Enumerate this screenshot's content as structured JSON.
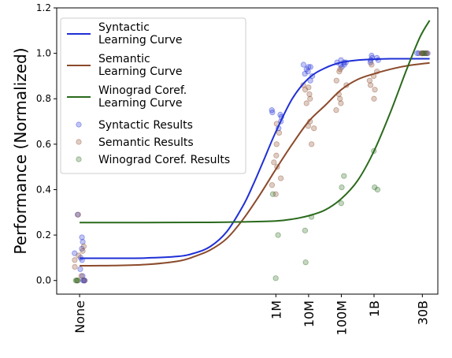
{
  "chart_data": {
    "type": "scatter",
    "title": "",
    "xlabel": "",
    "ylabel": "Performance (Normalized)",
    "ylim": [
      -0.06,
      1.2
    ],
    "yticks": [
      "0.0",
      "0.2",
      "0.4",
      "0.6",
      "0.8",
      "1.0",
      "1.2"
    ],
    "xticks": [
      {
        "label": "None",
        "log10": 0
      },
      {
        "label": "1M",
        "log10": 6
      },
      {
        "label": "10M",
        "log10": 7
      },
      {
        "label": "100M",
        "log10": 8
      },
      {
        "label": "1B",
        "log10": 9
      },
      {
        "label": "30B",
        "log10": 10.477
      }
    ],
    "x_scale": "log10 (None shown at the far left)",
    "legend_position": "top-left",
    "colors": {
      "syntactic": "#1f2fd6",
      "semantic": "#8b4a2b",
      "winograd": "#2a6a1c"
    },
    "curves": [
      {
        "name": "Syntactic\nLearning Curve",
        "color": "syntactic",
        "points": [
          [
            0,
            0.098
          ],
          [
            1,
            0.098
          ],
          [
            2,
            0.099
          ],
          [
            3,
            0.106
          ],
          [
            3.5,
            0.12
          ],
          [
            4,
            0.15
          ],
          [
            4.5,
            0.215
          ],
          [
            5,
            0.33
          ],
          [
            5.3,
            0.42
          ],
          [
            5.6,
            0.52
          ],
          [
            6,
            0.655
          ],
          [
            6.5,
            0.8
          ],
          [
            7,
            0.89
          ],
          [
            7.5,
            0.935
          ],
          [
            8,
            0.96
          ],
          [
            8.5,
            0.97
          ],
          [
            9,
            0.974
          ],
          [
            9.5,
            0.976
          ],
          [
            10,
            0.976
          ],
          [
            10.7,
            0.976
          ]
        ]
      },
      {
        "name": "Semantic\nLearning Curve",
        "color": "semantic",
        "points": [
          [
            0,
            0.065
          ],
          [
            1,
            0.066
          ],
          [
            2,
            0.07
          ],
          [
            3,
            0.085
          ],
          [
            3.5,
            0.105
          ],
          [
            4,
            0.135
          ],
          [
            4.5,
            0.185
          ],
          [
            5,
            0.27
          ],
          [
            5.5,
            0.375
          ],
          [
            6,
            0.49
          ],
          [
            6.5,
            0.6
          ],
          [
            7,
            0.7
          ],
          [
            7.5,
            0.77
          ],
          [
            8,
            0.84
          ],
          [
            8.5,
            0.885
          ],
          [
            9,
            0.91
          ],
          [
            9.5,
            0.93
          ],
          [
            10,
            0.945
          ],
          [
            10.7,
            0.958
          ]
        ]
      },
      {
        "name": "Winograd Coref.\nLearning Curve",
        "color": "winograd",
        "points": [
          [
            0,
            0.255
          ],
          [
            2,
            0.255
          ],
          [
            4,
            0.256
          ],
          [
            5,
            0.258
          ],
          [
            6,
            0.262
          ],
          [
            6.5,
            0.27
          ],
          [
            7,
            0.285
          ],
          [
            7.5,
            0.31
          ],
          [
            8,
            0.36
          ],
          [
            8.5,
            0.44
          ],
          [
            9,
            0.57
          ],
          [
            9.5,
            0.74
          ],
          [
            10,
            0.93
          ],
          [
            10.4,
            1.07
          ],
          [
            10.7,
            1.145
          ]
        ]
      }
    ],
    "series": [
      {
        "name": "Syntactic Results",
        "color": "syntactic",
        "points": [
          [
            0,
            0.0
          ],
          [
            0,
            0.0
          ],
          [
            0,
            0.0
          ],
          [
            0,
            0.02
          ],
          [
            0,
            0.05
          ],
          [
            0,
            0.09
          ],
          [
            0,
            0.1
          ],
          [
            0,
            0.12
          ],
          [
            0,
            0.14
          ],
          [
            0,
            0.17
          ],
          [
            0,
            0.19
          ],
          [
            0,
            0.29
          ],
          [
            6,
            0.67
          ],
          [
            6,
            0.7
          ],
          [
            6,
            0.72
          ],
          [
            6,
            0.73
          ],
          [
            6,
            0.74
          ],
          [
            6,
            0.75
          ],
          [
            7,
            0.88
          ],
          [
            7,
            0.9
          ],
          [
            7,
            0.91
          ],
          [
            7,
            0.92
          ],
          [
            7,
            0.93
          ],
          [
            7,
            0.94
          ],
          [
            7,
            0.94
          ],
          [
            7,
            0.95
          ],
          [
            8,
            0.94
          ],
          [
            8,
            0.95
          ],
          [
            8,
            0.95
          ],
          [
            8,
            0.96
          ],
          [
            8,
            0.96
          ],
          [
            8,
            0.96
          ],
          [
            8,
            0.97
          ],
          [
            9,
            0.96
          ],
          [
            9,
            0.97
          ],
          [
            9,
            0.97
          ],
          [
            9,
            0.98
          ],
          [
            9,
            0.98
          ],
          [
            9,
            0.99
          ],
          [
            10.477,
            1.0
          ],
          [
            10.477,
            1.0
          ],
          [
            10.477,
            1.0
          ],
          [
            10.477,
            1.0
          ]
        ]
      },
      {
        "name": "Semantic Results",
        "color": "semantic",
        "points": [
          [
            0,
            0.0
          ],
          [
            0,
            0.0
          ],
          [
            0,
            0.02
          ],
          [
            0,
            0.06
          ],
          [
            0,
            0.09
          ],
          [
            0,
            0.11
          ],
          [
            0,
            0.13
          ],
          [
            0,
            0.15
          ],
          [
            0,
            0.29
          ],
          [
            6,
            0.38
          ],
          [
            6,
            0.42
          ],
          [
            6,
            0.45
          ],
          [
            6,
            0.5
          ],
          [
            6,
            0.52
          ],
          [
            6,
            0.55
          ],
          [
            6,
            0.6
          ],
          [
            6,
            0.65
          ],
          [
            6,
            0.69
          ],
          [
            7,
            0.6
          ],
          [
            7,
            0.67
          ],
          [
            7,
            0.68
          ],
          [
            7,
            0.7
          ],
          [
            7,
            0.78
          ],
          [
            7,
            0.8
          ],
          [
            7,
            0.82
          ],
          [
            7,
            0.84
          ],
          [
            7,
            0.85
          ],
          [
            7,
            0.86
          ],
          [
            8,
            0.75
          ],
          [
            8,
            0.78
          ],
          [
            8,
            0.8
          ],
          [
            8,
            0.82
          ],
          [
            8,
            0.86
          ],
          [
            8,
            0.88
          ],
          [
            8,
            0.92
          ],
          [
            8,
            0.93
          ],
          [
            9,
            0.8
          ],
          [
            9,
            0.84
          ],
          [
            9,
            0.86
          ],
          [
            9,
            0.88
          ],
          [
            9,
            0.9
          ],
          [
            9,
            0.92
          ],
          [
            9,
            0.95
          ],
          [
            10.477,
            1.0
          ],
          [
            10.477,
            1.0
          ],
          [
            10.477,
            1.0
          ],
          [
            10.477,
            1.0
          ],
          [
            10.477,
            1.0
          ]
        ]
      },
      {
        "name": "Winograd Coref. Results",
        "color": "winograd",
        "points": [
          [
            0,
            0.0
          ],
          [
            0,
            0.0
          ],
          [
            0,
            0.0
          ],
          [
            6,
            0.01
          ],
          [
            6,
            0.2
          ],
          [
            6,
            0.38
          ],
          [
            7,
            0.08
          ],
          [
            7,
            0.22
          ],
          [
            7,
            0.28
          ],
          [
            8,
            0.34
          ],
          [
            8,
            0.41
          ],
          [
            8,
            0.46
          ],
          [
            9,
            0.4
          ],
          [
            9,
            0.41
          ],
          [
            9,
            0.57
          ],
          [
            10.477,
            1.0
          ],
          [
            10.477,
            1.0
          ]
        ]
      }
    ],
    "jitter": {
      "syntactic": 0.17,
      "semantic": 0.17,
      "winograd": 0.13
    }
  }
}
